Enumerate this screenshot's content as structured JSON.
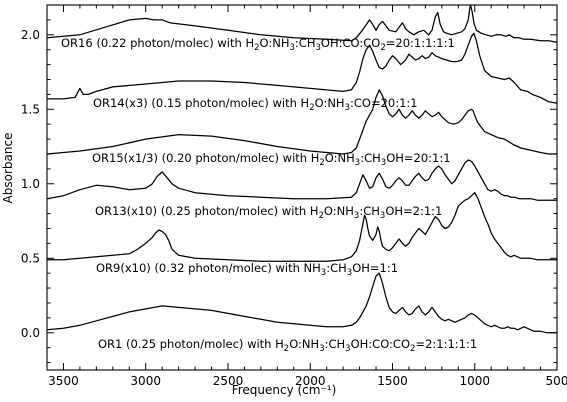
{
  "chart_data": {
    "type": "line",
    "title": "",
    "xlabel": "Frequency (cm⁻¹)",
    "ylabel": "Absorbance",
    "xlim": [
      3600,
      500
    ],
    "ylim": [
      -0.25,
      2.2
    ],
    "x_ticks": [
      3500,
      3000,
      2500,
      2000,
      1500,
      1000,
      500
    ],
    "y_ticks": [
      0.0,
      0.5,
      1.0,
      1.5,
      2.0
    ],
    "y_tick_labels": [
      "0.0",
      "0.5",
      "1.0",
      "1.5",
      "2.0"
    ],
    "grid": false,
    "legend": "none",
    "series": [
      {
        "name": "OR16 (0.22 photon/molec) with H2O:NH3:CH3OH:CO:CO2=20:1:1:1:1",
        "label_parts": [
          "OR16 (0.22 photon/molec) with H",
          "2",
          "O:NH",
          "3",
          ":CH",
          "3",
          "OH:CO:CO",
          "2",
          "=20:1:1:1:1"
        ],
        "x": [
          3600,
          3400,
          3250,
          3100,
          3000,
          2950,
          2900,
          2850,
          2700,
          2500,
          2300,
          2100,
          1900,
          1750,
          1720,
          1690,
          1670,
          1640,
          1620,
          1600,
          1580,
          1560,
          1520,
          1480,
          1460,
          1440,
          1420,
          1400,
          1370,
          1340,
          1310,
          1280,
          1260,
          1240,
          1225,
          1210,
          1190,
          1170,
          1140,
          1110,
          1080,
          1060,
          1040,
          1030,
          1025,
          1015,
          1005,
          990,
          960,
          930,
          900,
          870,
          840,
          810,
          790,
          760,
          730,
          700,
          660,
          600,
          550,
          500
        ],
        "values": [
          1.98,
          2.0,
          2.05,
          2.1,
          2.11,
          2.1,
          2.1,
          2.08,
          2.06,
          2.03,
          2.0,
          1.98,
          1.97,
          1.96,
          1.98,
          2.02,
          2.05,
          2.1,
          2.07,
          2.03,
          2.07,
          2.09,
          2.03,
          2.02,
          2.05,
          2.08,
          2.04,
          2.02,
          2.0,
          2.02,
          2.03,
          2.0,
          2.03,
          2.12,
          2.15,
          2.07,
          2.02,
          2.01,
          2.0,
          2.01,
          2.02,
          2.04,
          2.1,
          2.18,
          2.2,
          2.15,
          2.08,
          2.03,
          2.01,
          2.0,
          1.99,
          2.0,
          2.0,
          1.99,
          2.0,
          1.98,
          1.98,
          1.97,
          1.97,
          1.96,
          1.96,
          1.95
        ]
      },
      {
        "name": "OR14(x3) (0.15 photon/molec) with H2O:NH3:CO=20:1:1",
        "label_parts": [
          "OR14(x3) (0.15 photon/molec) with H",
          "2",
          "O:NH",
          "3",
          ":CO=20:1:1",
          "",
          "",
          "",
          ""
        ],
        "x": [
          3600,
          3500,
          3430,
          3400,
          3380,
          3350,
          3300,
          3200,
          3000,
          2800,
          2600,
          2400,
          2200,
          2000,
          1800,
          1750,
          1720,
          1700,
          1680,
          1660,
          1640,
          1620,
          1600,
          1580,
          1560,
          1540,
          1520,
          1500,
          1480,
          1450,
          1420,
          1400,
          1380,
          1360,
          1340,
          1320,
          1300,
          1280,
          1260,
          1240,
          1220,
          1200,
          1170,
          1140,
          1110,
          1080,
          1060,
          1040,
          1020,
          1005,
          990,
          970,
          940,
          900,
          860,
          820,
          790,
          760,
          720,
          680,
          650,
          600,
          550,
          500
        ],
        "values": [
          1.57,
          1.57,
          1.58,
          1.64,
          1.6,
          1.6,
          1.62,
          1.65,
          1.67,
          1.69,
          1.69,
          1.68,
          1.66,
          1.64,
          1.62,
          1.63,
          1.68,
          1.75,
          1.84,
          1.9,
          1.93,
          1.89,
          1.83,
          1.78,
          1.77,
          1.79,
          1.83,
          1.86,
          1.84,
          1.8,
          1.83,
          1.87,
          1.85,
          1.83,
          1.84,
          1.86,
          1.84,
          1.85,
          1.88,
          1.86,
          1.85,
          1.84,
          1.83,
          1.82,
          1.82,
          1.83,
          1.87,
          1.93,
          1.99,
          2.01,
          1.96,
          1.86,
          1.76,
          1.72,
          1.71,
          1.7,
          1.71,
          1.68,
          1.63,
          1.62,
          1.6,
          1.58,
          1.55,
          1.54
        ]
      },
      {
        "name": "OR15(x1/3) (0.20 photon/molec) with H2O:NH3:CH3OH=20:1:1",
        "label_parts": [
          "OR15(x1/3) (0.20 photon/molec) with H",
          "2",
          "O:NH",
          "3",
          ":CH",
          "3",
          "OH=20:1:1",
          "",
          ""
        ],
        "x": [
          3600,
          3400,
          3200,
          3000,
          2800,
          2600,
          2400,
          2200,
          2000,
          1800,
          1750,
          1720,
          1700,
          1680,
          1660,
          1640,
          1620,
          1600,
          1580,
          1560,
          1540,
          1520,
          1500,
          1480,
          1460,
          1440,
          1420,
          1400,
          1380,
          1360,
          1340,
          1320,
          1300,
          1280,
          1260,
          1240,
          1220,
          1200,
          1180,
          1160,
          1130,
          1100,
          1080,
          1060,
          1040,
          1020,
          1010,
          1000,
          990,
          980,
          960,
          940,
          900,
          860,
          820,
          790,
          760,
          720,
          680,
          640,
          600,
          550,
          500
        ],
        "values": [
          1.2,
          1.22,
          1.25,
          1.3,
          1.33,
          1.32,
          1.29,
          1.25,
          1.22,
          1.2,
          1.21,
          1.24,
          1.3,
          1.36,
          1.42,
          1.46,
          1.5,
          1.58,
          1.63,
          1.59,
          1.52,
          1.47,
          1.45,
          1.47,
          1.5,
          1.46,
          1.44,
          1.46,
          1.49,
          1.46,
          1.44,
          1.46,
          1.49,
          1.47,
          1.45,
          1.46,
          1.48,
          1.45,
          1.43,
          1.41,
          1.4,
          1.41,
          1.43,
          1.46,
          1.49,
          1.5,
          1.49,
          1.46,
          1.43,
          1.41,
          1.38,
          1.35,
          1.33,
          1.31,
          1.3,
          1.28,
          1.26,
          1.24,
          1.23,
          1.22,
          1.21,
          1.2,
          1.2
        ]
      },
      {
        "name": "OR13(x10) (0.25 photon/molec) with H2O:NH3:CH3OH=2:1:1",
        "label_parts": [
          "OR13(x10) (0.25 photon/molec) with H",
          "2",
          "O:NH",
          "3",
          ":CH",
          "3",
          "OH=2:1:1",
          "",
          ""
        ],
        "x": [
          3600,
          3500,
          3400,
          3300,
          3200,
          3100,
          3000,
          2960,
          2930,
          2900,
          2870,
          2840,
          2800,
          2700,
          2500,
          2300,
          2100,
          1900,
          1750,
          1720,
          1700,
          1680,
          1660,
          1640,
          1620,
          1600,
          1580,
          1560,
          1540,
          1520,
          1500,
          1480,
          1460,
          1440,
          1420,
          1400,
          1380,
          1360,
          1340,
          1320,
          1300,
          1280,
          1260,
          1240,
          1220,
          1200,
          1180,
          1160,
          1140,
          1120,
          1100,
          1080,
          1060,
          1040,
          1020,
          1000,
          980,
          960,
          940,
          920,
          900,
          880,
          860,
          840,
          820,
          800,
          780,
          760,
          730,
          700,
          660,
          620,
          580,
          540,
          500
        ],
        "values": [
          0.9,
          0.92,
          0.96,
          0.99,
          0.98,
          0.96,
          0.97,
          1.0,
          1.05,
          1.08,
          1.04,
          1.0,
          0.97,
          0.94,
          0.92,
          0.91,
          0.9,
          0.9,
          0.91,
          0.94,
          1.0,
          1.06,
          1.02,
          0.97,
          0.98,
          1.04,
          1.07,
          1.03,
          0.98,
          0.97,
          0.99,
          1.02,
          1.04,
          1.02,
          0.99,
          0.99,
          1.02,
          1.05,
          1.07,
          1.04,
          1.02,
          1.03,
          1.07,
          1.1,
          1.12,
          1.1,
          1.06,
          1.03,
          1.0,
          1.02,
          1.06,
          1.1,
          1.14,
          1.16,
          1.15,
          1.12,
          1.08,
          1.04,
          1.0,
          0.96,
          0.95,
          0.96,
          0.95,
          0.93,
          0.92,
          0.92,
          0.91,
          0.91,
          0.9,
          0.9,
          0.9,
          0.89,
          0.89,
          0.89,
          0.89
        ]
      },
      {
        "name": "OR9(x10) (0.32 photon/molec) with NH3:CH3OH=1:1",
        "label_parts": [
          "OR9(x10) (0.32 photon/molec) with NH",
          "3",
          ":CH",
          "3",
          "OH=1:1",
          "",
          "",
          "",
          ""
        ],
        "x": [
          3600,
          3500,
          3400,
          3300,
          3200,
          3100,
          3050,
          3000,
          2960,
          2940,
          2920,
          2900,
          2880,
          2860,
          2840,
          2800,
          2700,
          2500,
          2300,
          2100,
          1900,
          1800,
          1750,
          1720,
          1700,
          1680,
          1670,
          1660,
          1650,
          1640,
          1620,
          1600,
          1590,
          1580,
          1570,
          1560,
          1540,
          1520,
          1500,
          1480,
          1460,
          1440,
          1420,
          1400,
          1380,
          1360,
          1340,
          1320,
          1300,
          1280,
          1260,
          1240,
          1220,
          1200,
          1180,
          1160,
          1140,
          1120,
          1100,
          1080,
          1060,
          1040,
          1020,
          1000,
          980,
          960,
          940,
          920,
          900,
          880,
          860,
          840,
          820,
          800,
          780,
          760,
          740,
          720,
          700,
          660,
          620,
          580,
          540,
          500
        ],
        "values": [
          0.49,
          0.49,
          0.5,
          0.51,
          0.52,
          0.53,
          0.56,
          0.6,
          0.64,
          0.67,
          0.69,
          0.68,
          0.66,
          0.62,
          0.56,
          0.52,
          0.5,
          0.49,
          0.48,
          0.48,
          0.48,
          0.49,
          0.51,
          0.55,
          0.62,
          0.73,
          0.79,
          0.76,
          0.7,
          0.65,
          0.62,
          0.66,
          0.71,
          0.68,
          0.62,
          0.58,
          0.56,
          0.55,
          0.57,
          0.6,
          0.63,
          0.6,
          0.58,
          0.6,
          0.64,
          0.67,
          0.7,
          0.68,
          0.66,
          0.7,
          0.74,
          0.78,
          0.76,
          0.72,
          0.7,
          0.71,
          0.74,
          0.79,
          0.85,
          0.87,
          0.89,
          0.9,
          0.92,
          0.94,
          0.9,
          0.84,
          0.78,
          0.73,
          0.67,
          0.63,
          0.6,
          0.57,
          0.54,
          0.52,
          0.51,
          0.52,
          0.51,
          0.5,
          0.5,
          0.5,
          0.49,
          0.49,
          0.49,
          0.49
        ]
      },
      {
        "name": "OR1 (0.25 photon/molec) with H2O:NH3:CH3OH:CO:CO2=2:1:1:1:1",
        "label_parts": [
          "OR1 (0.25 photon/molec) with H",
          "2",
          "O:NH",
          "3",
          ":CH",
          "3",
          "OH:CO:CO",
          "2",
          "=2:1:1:1:1"
        ],
        "x": [
          3600,
          3500,
          3400,
          3300,
          3200,
          3100,
          3000,
          2900,
          2800,
          2700,
          2600,
          2500,
          2400,
          2300,
          2200,
          2100,
          2000,
          1900,
          1800,
          1750,
          1720,
          1700,
          1680,
          1660,
          1640,
          1620,
          1600,
          1580,
          1560,
          1540,
          1520,
          1500,
          1480,
          1460,
          1440,
          1420,
          1400,
          1380,
          1360,
          1340,
          1320,
          1300,
          1280,
          1260,
          1240,
          1220,
          1200,
          1180,
          1160,
          1140,
          1120,
          1100,
          1080,
          1060,
          1040,
          1020,
          1000,
          980,
          960,
          940,
          920,
          900,
          880,
          860,
          840,
          820,
          800,
          780,
          760,
          740,
          720,
          700,
          680,
          660,
          640,
          620,
          600,
          560,
          520,
          500
        ],
        "values": [
          0.02,
          0.03,
          0.05,
          0.08,
          0.11,
          0.14,
          0.16,
          0.18,
          0.17,
          0.16,
          0.15,
          0.13,
          0.11,
          0.09,
          0.07,
          0.06,
          0.05,
          0.04,
          0.04,
          0.05,
          0.07,
          0.1,
          0.14,
          0.18,
          0.24,
          0.31,
          0.38,
          0.4,
          0.33,
          0.24,
          0.17,
          0.14,
          0.13,
          0.15,
          0.17,
          0.14,
          0.12,
          0.13,
          0.16,
          0.18,
          0.14,
          0.12,
          0.14,
          0.17,
          0.14,
          0.11,
          0.09,
          0.08,
          0.09,
          0.08,
          0.07,
          0.08,
          0.09,
          0.1,
          0.12,
          0.13,
          0.12,
          0.1,
          0.08,
          0.06,
          0.05,
          0.04,
          0.05,
          0.04,
          0.03,
          0.03,
          0.04,
          0.03,
          0.03,
          0.02,
          0.03,
          0.04,
          0.03,
          0.02,
          0.01,
          0.01,
          0.01,
          0.0,
          0.0,
          0.0
        ]
      }
    ]
  }
}
